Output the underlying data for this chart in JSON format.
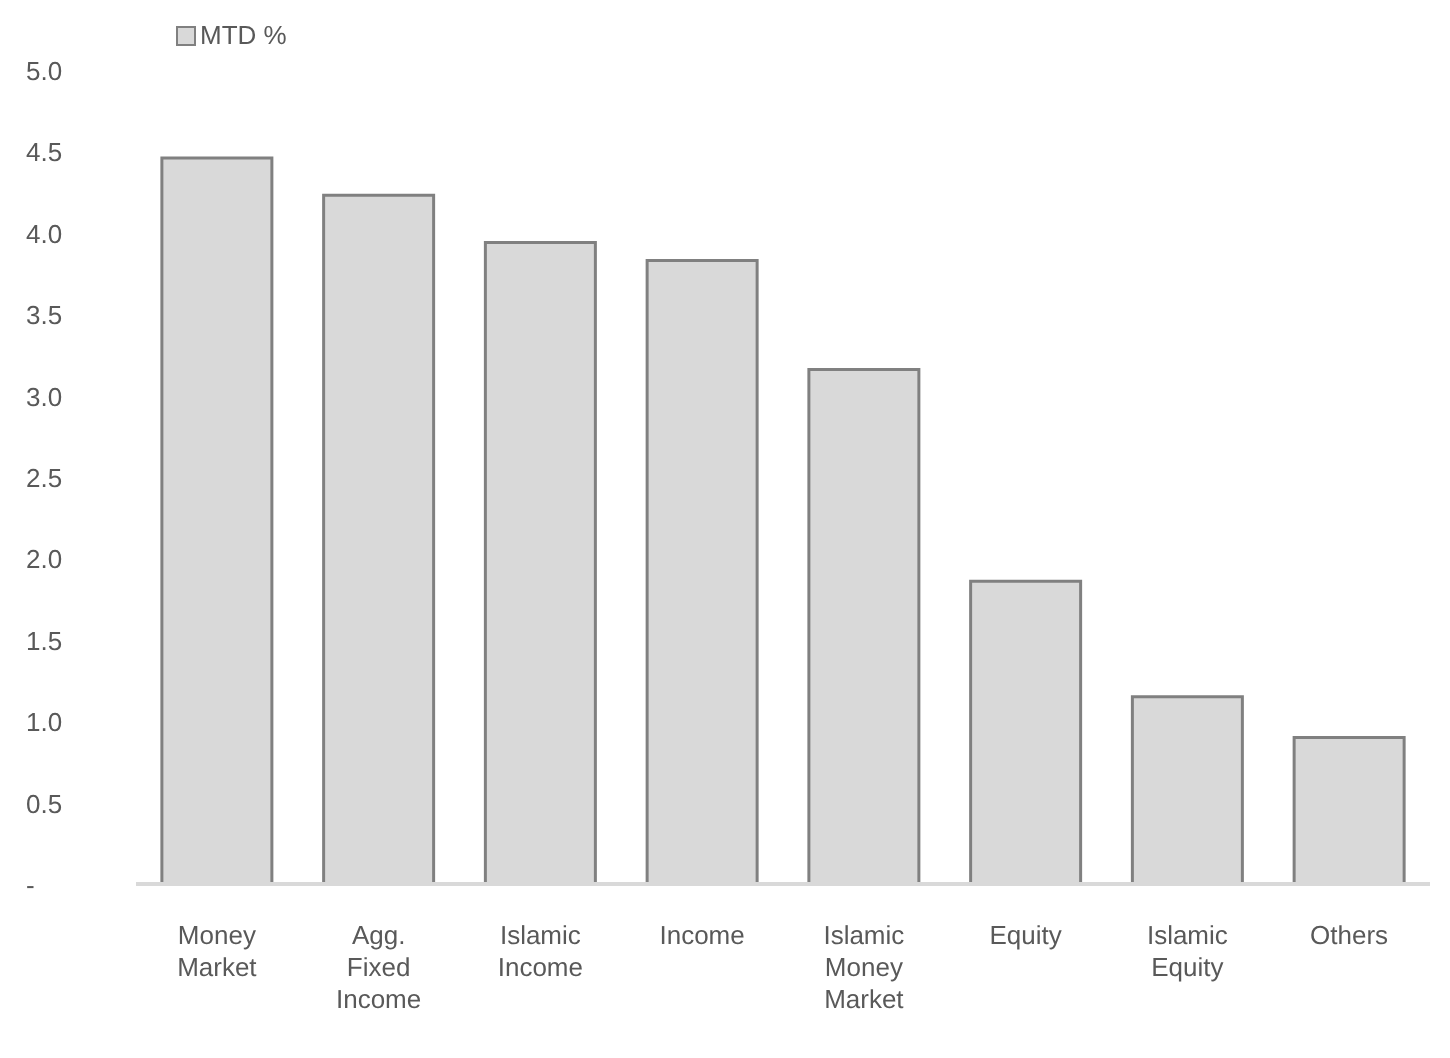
{
  "chart_data": {
    "type": "bar",
    "categories": [
      "Money Market",
      "Agg. Fixed Income",
      "Islamic Income",
      "Income",
      "Islamic Money Market",
      "Equity",
      "Islamic Equity",
      "Others"
    ],
    "series": [
      {
        "name": "MTD %",
        "color": "#d9d9d9",
        "values": [
          4.46,
          4.23,
          3.94,
          3.83,
          3.16,
          1.86,
          1.15,
          0.9
        ]
      }
    ],
    "ylim": [
      0,
      5
    ],
    "yticks": [
      {
        "value": 0,
        "label": "-"
      },
      0.5,
      {
        "value": 1,
        "label": "1.0"
      },
      1.5,
      {
        "value": 2,
        "label": "2.0"
      },
      2.5,
      {
        "value": 3,
        "label": "3.0"
      },
      3.5,
      {
        "value": 4,
        "label": "4.0"
      },
      4.5,
      {
        "value": 5,
        "label": "5.0"
      }
    ],
    "grid": false,
    "legend": "top left"
  }
}
